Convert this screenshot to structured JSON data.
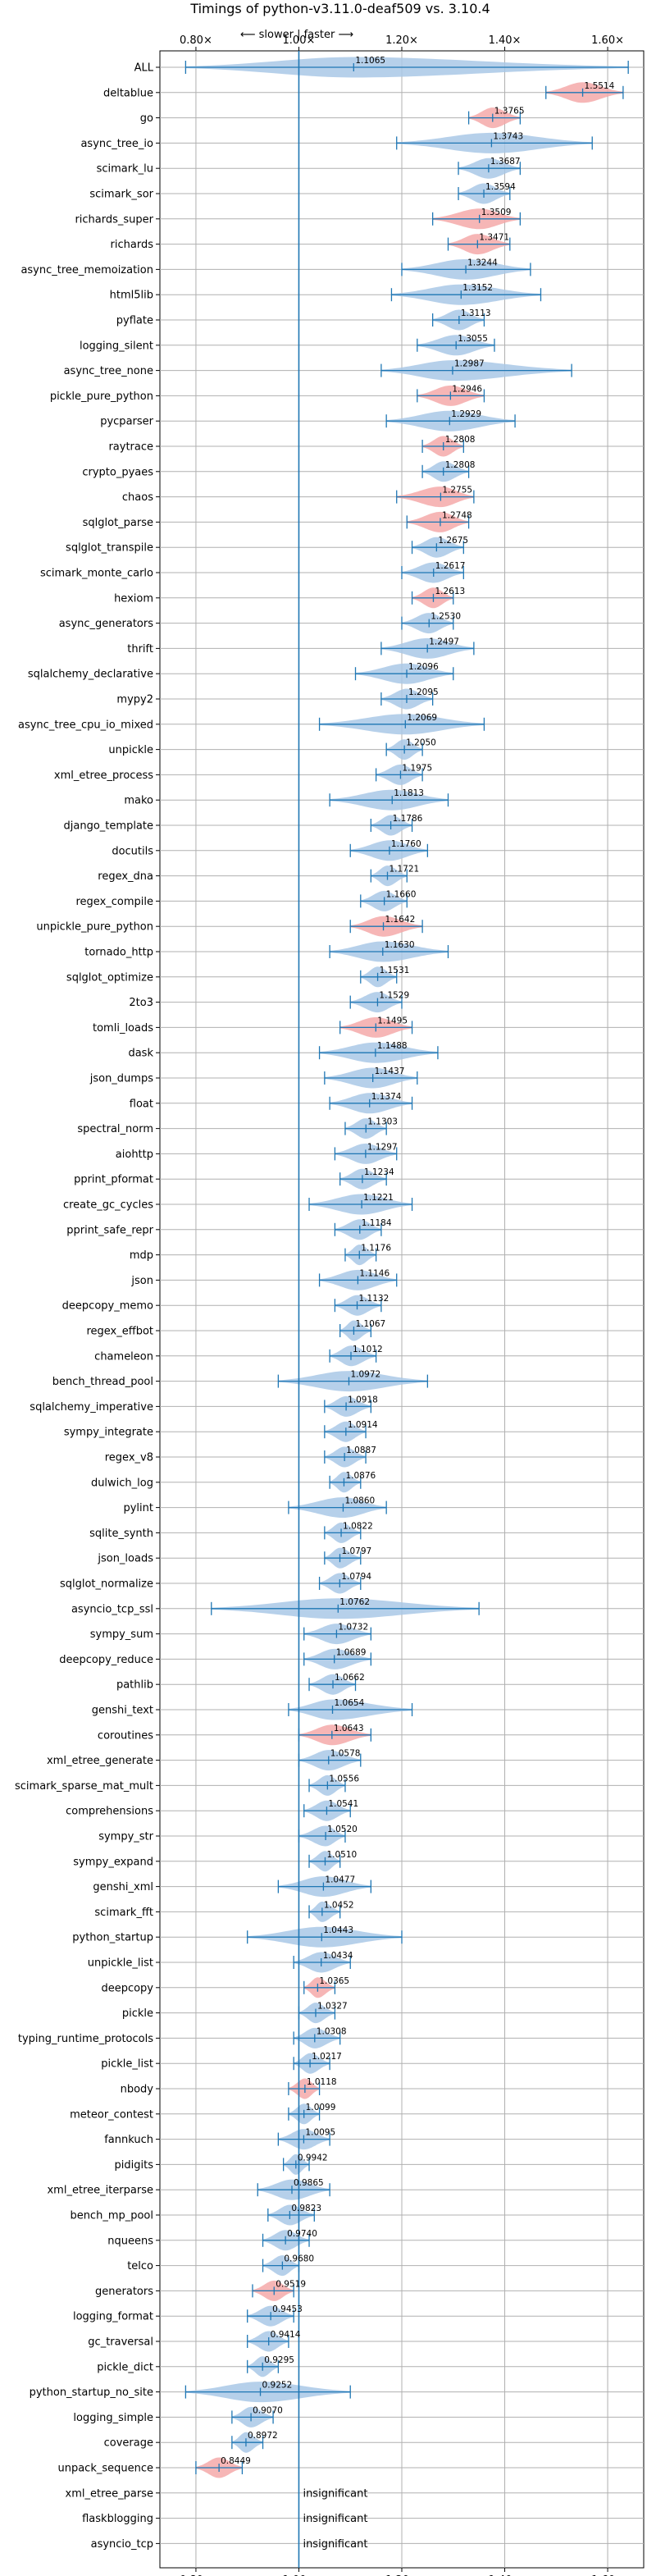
{
  "chart_data": {
    "type": "violin",
    "title": "Timings of python-v3.11.0-deaf509 vs. 3.10.4",
    "subtitle": "⟵ slower | faster ⟶",
    "xlim": [
      0.73,
      1.67
    ],
    "xticks": [
      0.8,
      1.0,
      1.2,
      1.4,
      1.6
    ],
    "xtick_labels": [
      "0.80×",
      "1.00×",
      "1.20×",
      "1.40×",
      "1.60×"
    ],
    "grid": true,
    "insignificant_label": "insignificant",
    "colors": {
      "blue": "#a9c8e6",
      "red": "#f4a9a9",
      "whisker": "#1f77b4",
      "grid": "#b0b0b0"
    },
    "benchmarks": [
      {
        "name": "ALL",
        "value": 1.1065,
        "min": 0.78,
        "max": 1.64,
        "color": "blue"
      },
      {
        "name": "deltablue",
        "value": 1.5514,
        "min": 1.48,
        "max": 1.63,
        "color": "red"
      },
      {
        "name": "go",
        "value": 1.3765,
        "min": 1.33,
        "max": 1.43,
        "color": "red"
      },
      {
        "name": "async_tree_io",
        "value": 1.3743,
        "min": 1.19,
        "max": 1.57,
        "color": "blue"
      },
      {
        "name": "scimark_lu",
        "value": 1.3687,
        "min": 1.31,
        "max": 1.43,
        "color": "blue"
      },
      {
        "name": "scimark_sor",
        "value": 1.3594,
        "min": 1.31,
        "max": 1.41,
        "color": "blue"
      },
      {
        "name": "richards_super",
        "value": 1.3509,
        "min": 1.26,
        "max": 1.43,
        "color": "red"
      },
      {
        "name": "richards",
        "value": 1.3471,
        "min": 1.29,
        "max": 1.41,
        "color": "red"
      },
      {
        "name": "async_tree_memoization",
        "value": 1.3244,
        "min": 1.2,
        "max": 1.45,
        "color": "blue"
      },
      {
        "name": "html5lib",
        "value": 1.3152,
        "min": 1.18,
        "max": 1.47,
        "color": "blue"
      },
      {
        "name": "pyflate",
        "value": 1.3113,
        "min": 1.26,
        "max": 1.36,
        "color": "blue"
      },
      {
        "name": "logging_silent",
        "value": 1.3055,
        "min": 1.23,
        "max": 1.38,
        "color": "blue"
      },
      {
        "name": "async_tree_none",
        "value": 1.2987,
        "min": 1.16,
        "max": 1.53,
        "color": "blue"
      },
      {
        "name": "pickle_pure_python",
        "value": 1.2946,
        "min": 1.23,
        "max": 1.36,
        "color": "red"
      },
      {
        "name": "pycparser",
        "value": 1.2929,
        "min": 1.17,
        "max": 1.42,
        "color": "blue"
      },
      {
        "name": "raytrace",
        "value": 1.2808,
        "min": 1.24,
        "max": 1.32,
        "color": "red"
      },
      {
        "name": "crypto_pyaes",
        "value": 1.2808,
        "min": 1.24,
        "max": 1.33,
        "color": "blue"
      },
      {
        "name": "chaos",
        "value": 1.2755,
        "min": 1.19,
        "max": 1.34,
        "color": "red"
      },
      {
        "name": "sqlglot_parse",
        "value": 1.2748,
        "min": 1.21,
        "max": 1.33,
        "color": "red"
      },
      {
        "name": "sqlglot_transpile",
        "value": 1.2675,
        "min": 1.22,
        "max": 1.32,
        "color": "blue"
      },
      {
        "name": "scimark_monte_carlo",
        "value": 1.2617,
        "min": 1.2,
        "max": 1.32,
        "color": "blue"
      },
      {
        "name": "hexiom",
        "value": 1.2613,
        "min": 1.22,
        "max": 1.3,
        "color": "red"
      },
      {
        "name": "async_generators",
        "value": 1.253,
        "min": 1.2,
        "max": 1.3,
        "color": "blue"
      },
      {
        "name": "thrift",
        "value": 1.2497,
        "min": 1.16,
        "max": 1.34,
        "color": "blue"
      },
      {
        "name": "sqlalchemy_declarative",
        "value": 1.2096,
        "min": 1.11,
        "max": 1.3,
        "color": "blue"
      },
      {
        "name": "mypy2",
        "value": 1.2095,
        "min": 1.16,
        "max": 1.26,
        "color": "blue"
      },
      {
        "name": "async_tree_cpu_io_mixed",
        "value": 1.2069,
        "min": 1.04,
        "max": 1.36,
        "color": "blue"
      },
      {
        "name": "unpickle",
        "value": 1.205,
        "min": 1.17,
        "max": 1.24,
        "color": "blue"
      },
      {
        "name": "xml_etree_process",
        "value": 1.1975,
        "min": 1.15,
        "max": 1.24,
        "color": "blue"
      },
      {
        "name": "mako",
        "value": 1.1813,
        "min": 1.06,
        "max": 1.29,
        "color": "blue"
      },
      {
        "name": "django_template",
        "value": 1.1786,
        "min": 1.14,
        "max": 1.22,
        "color": "blue"
      },
      {
        "name": "docutils",
        "value": 1.176,
        "min": 1.1,
        "max": 1.25,
        "color": "blue"
      },
      {
        "name": "regex_dna",
        "value": 1.1721,
        "min": 1.14,
        "max": 1.21,
        "color": "blue"
      },
      {
        "name": "regex_compile",
        "value": 1.166,
        "min": 1.12,
        "max": 1.21,
        "color": "blue"
      },
      {
        "name": "unpickle_pure_python",
        "value": 1.1642,
        "min": 1.1,
        "max": 1.24,
        "color": "red"
      },
      {
        "name": "tornado_http",
        "value": 1.163,
        "min": 1.06,
        "max": 1.29,
        "color": "blue"
      },
      {
        "name": "sqlglot_optimize",
        "value": 1.1531,
        "min": 1.12,
        "max": 1.19,
        "color": "blue"
      },
      {
        "name": "2to3",
        "value": 1.1529,
        "min": 1.1,
        "max": 1.2,
        "color": "blue"
      },
      {
        "name": "tomli_loads",
        "value": 1.1495,
        "min": 1.08,
        "max": 1.22,
        "color": "red"
      },
      {
        "name": "dask",
        "value": 1.1488,
        "min": 1.04,
        "max": 1.27,
        "color": "blue"
      },
      {
        "name": "json_dumps",
        "value": 1.1437,
        "min": 1.05,
        "max": 1.23,
        "color": "blue"
      },
      {
        "name": "float",
        "value": 1.1374,
        "min": 1.06,
        "max": 1.22,
        "color": "blue"
      },
      {
        "name": "spectral_norm",
        "value": 1.1303,
        "min": 1.09,
        "max": 1.17,
        "color": "blue"
      },
      {
        "name": "aiohttp",
        "value": 1.1297,
        "min": 1.07,
        "max": 1.19,
        "color": "blue"
      },
      {
        "name": "pprint_pformat",
        "value": 1.1234,
        "min": 1.08,
        "max": 1.17,
        "color": "blue"
      },
      {
        "name": "create_gc_cycles",
        "value": 1.1221,
        "min": 1.02,
        "max": 1.22,
        "color": "blue"
      },
      {
        "name": "pprint_safe_repr",
        "value": 1.1184,
        "min": 1.07,
        "max": 1.16,
        "color": "blue"
      },
      {
        "name": "mdp",
        "value": 1.1176,
        "min": 1.09,
        "max": 1.15,
        "color": "blue"
      },
      {
        "name": "json",
        "value": 1.1146,
        "min": 1.04,
        "max": 1.19,
        "color": "blue"
      },
      {
        "name": "deepcopy_memo",
        "value": 1.1132,
        "min": 1.07,
        "max": 1.16,
        "color": "blue"
      },
      {
        "name": "regex_effbot",
        "value": 1.1067,
        "min": 1.08,
        "max": 1.14,
        "color": "blue"
      },
      {
        "name": "chameleon",
        "value": 1.1012,
        "min": 1.06,
        "max": 1.15,
        "color": "blue"
      },
      {
        "name": "bench_thread_pool",
        "value": 1.0972,
        "min": 0.96,
        "max": 1.25,
        "color": "blue"
      },
      {
        "name": "sqlalchemy_imperative",
        "value": 1.0918,
        "min": 1.05,
        "max": 1.14,
        "color": "blue"
      },
      {
        "name": "sympy_integrate",
        "value": 1.0914,
        "min": 1.05,
        "max": 1.13,
        "color": "blue"
      },
      {
        "name": "regex_v8",
        "value": 1.0887,
        "min": 1.05,
        "max": 1.13,
        "color": "blue"
      },
      {
        "name": "dulwich_log",
        "value": 1.0876,
        "min": 1.06,
        "max": 1.12,
        "color": "blue"
      },
      {
        "name": "pylint",
        "value": 1.086,
        "min": 0.98,
        "max": 1.17,
        "color": "blue"
      },
      {
        "name": "sqlite_synth",
        "value": 1.0822,
        "min": 1.05,
        "max": 1.12,
        "color": "blue"
      },
      {
        "name": "json_loads",
        "value": 1.0797,
        "min": 1.05,
        "max": 1.12,
        "color": "blue"
      },
      {
        "name": "sqlglot_normalize",
        "value": 1.0794,
        "min": 1.04,
        "max": 1.12,
        "color": "blue"
      },
      {
        "name": "asyncio_tcp_ssl",
        "value": 1.0762,
        "min": 0.83,
        "max": 1.35,
        "color": "blue"
      },
      {
        "name": "sympy_sum",
        "value": 1.0732,
        "min": 1.01,
        "max": 1.14,
        "color": "blue"
      },
      {
        "name": "deepcopy_reduce",
        "value": 1.0689,
        "min": 1.01,
        "max": 1.14,
        "color": "blue"
      },
      {
        "name": "pathlib",
        "value": 1.0662,
        "min": 1.02,
        "max": 1.11,
        "color": "blue"
      },
      {
        "name": "genshi_text",
        "value": 1.0654,
        "min": 0.98,
        "max": 1.22,
        "color": "blue"
      },
      {
        "name": "coroutines",
        "value": 1.0643,
        "min": 1.0,
        "max": 1.14,
        "color": "red"
      },
      {
        "name": "xml_etree_generate",
        "value": 1.0578,
        "min": 1.0,
        "max": 1.12,
        "color": "blue"
      },
      {
        "name": "scimark_sparse_mat_mult",
        "value": 1.0556,
        "min": 1.02,
        "max": 1.09,
        "color": "blue"
      },
      {
        "name": "comprehensions",
        "value": 1.0541,
        "min": 1.01,
        "max": 1.1,
        "color": "blue"
      },
      {
        "name": "sympy_str",
        "value": 1.052,
        "min": 1.0,
        "max": 1.09,
        "color": "blue"
      },
      {
        "name": "sympy_expand",
        "value": 1.051,
        "min": 1.02,
        "max": 1.08,
        "color": "blue"
      },
      {
        "name": "genshi_xml",
        "value": 1.0477,
        "min": 0.96,
        "max": 1.14,
        "color": "blue"
      },
      {
        "name": "scimark_fft",
        "value": 1.0452,
        "min": 1.02,
        "max": 1.08,
        "color": "blue"
      },
      {
        "name": "python_startup",
        "value": 1.0443,
        "min": 0.9,
        "max": 1.2,
        "color": "blue"
      },
      {
        "name": "unpickle_list",
        "value": 1.0434,
        "min": 0.99,
        "max": 1.1,
        "color": "blue"
      },
      {
        "name": "deepcopy",
        "value": 1.0365,
        "min": 1.01,
        "max": 1.07,
        "color": "red"
      },
      {
        "name": "pickle",
        "value": 1.0327,
        "min": 1.0,
        "max": 1.07,
        "color": "blue"
      },
      {
        "name": "typing_runtime_protocols",
        "value": 1.0308,
        "min": 0.99,
        "max": 1.08,
        "color": "blue"
      },
      {
        "name": "pickle_list",
        "value": 1.0217,
        "min": 0.99,
        "max": 1.06,
        "color": "blue"
      },
      {
        "name": "nbody",
        "value": 1.0118,
        "min": 0.98,
        "max": 1.04,
        "color": "red"
      },
      {
        "name": "meteor_contest",
        "value": 1.0099,
        "min": 0.98,
        "max": 1.04,
        "color": "blue"
      },
      {
        "name": "fannkuch",
        "value": 1.0095,
        "min": 0.96,
        "max": 1.06,
        "color": "blue"
      },
      {
        "name": "pidigits",
        "value": 0.9942,
        "min": 0.97,
        "max": 1.02,
        "color": "blue"
      },
      {
        "name": "xml_etree_iterparse",
        "value": 0.9865,
        "min": 0.92,
        "max": 1.06,
        "color": "blue"
      },
      {
        "name": "bench_mp_pool",
        "value": 0.9823,
        "min": 0.94,
        "max": 1.03,
        "color": "blue"
      },
      {
        "name": "nqueens",
        "value": 0.974,
        "min": 0.93,
        "max": 1.02,
        "color": "blue"
      },
      {
        "name": "telco",
        "value": 0.968,
        "min": 0.93,
        "max": 1.0,
        "color": "blue"
      },
      {
        "name": "generators",
        "value": 0.9519,
        "min": 0.91,
        "max": 0.99,
        "color": "red"
      },
      {
        "name": "logging_format",
        "value": 0.9453,
        "min": 0.9,
        "max": 0.99,
        "color": "blue"
      },
      {
        "name": "gc_traversal",
        "value": 0.9414,
        "min": 0.9,
        "max": 0.98,
        "color": "blue"
      },
      {
        "name": "pickle_dict",
        "value": 0.9295,
        "min": 0.9,
        "max": 0.96,
        "color": "blue"
      },
      {
        "name": "python_startup_no_site",
        "value": 0.9252,
        "min": 0.78,
        "max": 1.1,
        "color": "blue"
      },
      {
        "name": "logging_simple",
        "value": 0.907,
        "min": 0.87,
        "max": 0.95,
        "color": "blue"
      },
      {
        "name": "coverage",
        "value": 0.8972,
        "min": 0.87,
        "max": 0.93,
        "color": "blue"
      },
      {
        "name": "unpack_sequence",
        "value": 0.8449,
        "min": 0.8,
        "max": 0.89,
        "color": "red"
      },
      {
        "name": "xml_etree_parse",
        "value": null,
        "insignificant": true
      },
      {
        "name": "flaskblogging",
        "value": null,
        "insignificant": true
      },
      {
        "name": "asyncio_tcp",
        "value": null,
        "insignificant": true
      }
    ]
  }
}
